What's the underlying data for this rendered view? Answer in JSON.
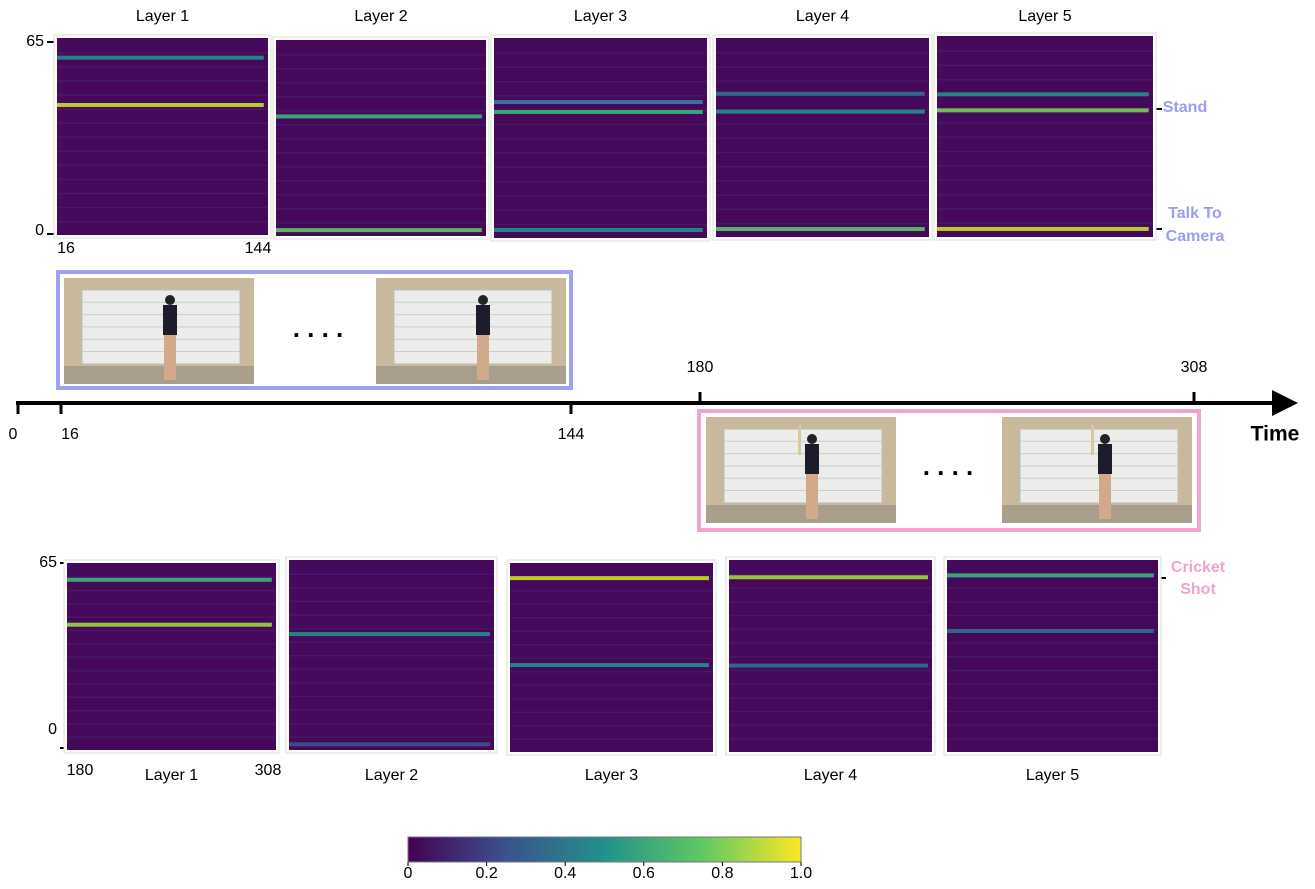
{
  "top_panel": {
    "layers": [
      "Layer 1",
      "Layer 2",
      "Layer 3",
      "Layer 4",
      "Layer 5"
    ],
    "y_labels": [
      "65",
      "0"
    ],
    "x_labels": [
      "16",
      "144"
    ],
    "actions": [
      "Stand",
      "Talk To",
      "Camera"
    ]
  },
  "timeline": {
    "labels": [
      "0",
      "16",
      "144",
      "180",
      "308"
    ],
    "axis_label": "Time",
    "ellipsis": ". . . ."
  },
  "bottom_panel": {
    "layers": [
      "Layer 1",
      "Layer 2",
      "Layer 3",
      "Layer 4",
      "Layer 5"
    ],
    "y_labels": [
      "65",
      "0"
    ],
    "x_labels": [
      "180",
      "308"
    ],
    "actions": [
      "Cricket",
      "Shot"
    ]
  },
  "colorbar": {
    "ticks": [
      "0",
      "0.2",
      "0.4",
      "0.6",
      "0.8",
      "1.0"
    ]
  }
}
